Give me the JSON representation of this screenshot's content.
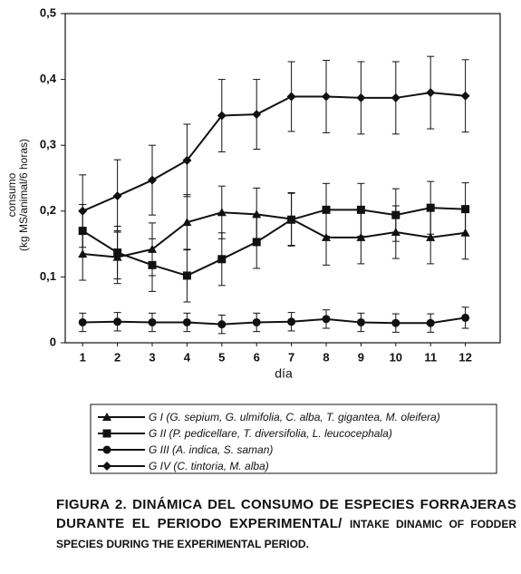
{
  "chart_data": {
    "type": "line",
    "xlabel": "día",
    "ylabel": [
      "consumo",
      "(kg MS/animal/6 horas)"
    ],
    "x": [
      1,
      2,
      3,
      4,
      5,
      6,
      7,
      8,
      9,
      10,
      11,
      12
    ],
    "xlim": [
      0.5,
      13
    ],
    "xticks": [
      1,
      2,
      3,
      4,
      5,
      6,
      7,
      8,
      9,
      10,
      11,
      12
    ],
    "ylim": [
      0,
      0.5
    ],
    "yticks": [
      0,
      {
        "value": 0.1,
        "label": "0,1"
      },
      {
        "value": 0.2,
        "label": "0,2"
      },
      {
        "value": 0.3,
        "label": "0,3"
      },
      {
        "value": 0.4,
        "label": "0,4"
      },
      {
        "value": 0.5,
        "label": "0,5"
      }
    ],
    "series": [
      {
        "name": "G I (G. sepium, G. ulmifolia, C. alba, T. gigantea, M. oleifera)",
        "color": "#111111",
        "marker": "triangle",
        "values": [
          0.135,
          0.13,
          0.142,
          0.183,
          0.198,
          0.195,
          0.188,
          0.16,
          0.16,
          0.168,
          0.16,
          0.167
        ],
        "errors": [
          0.04,
          0.04,
          0.04,
          0.042,
          0.04,
          0.04,
          0.04,
          0.042,
          0.04,
          0.04,
          0.04,
          0.04
        ]
      },
      {
        "name": "G II (P. pedicellare, T. diversifolia, L. leucocephala)",
        "color": "#111111",
        "marker": "square",
        "values": [
          0.17,
          0.137,
          0.118,
          0.102,
          0.127,
          0.153,
          0.187,
          0.202,
          0.202,
          0.194,
          0.205,
          0.203
        ],
        "errors": [
          0.04,
          0.04,
          0.04,
          0.04,
          0.04,
          0.04,
          0.04,
          0.04,
          0.04,
          0.04,
          0.04,
          0.04
        ]
      },
      {
        "name": "G III (A. indica, S. saman)",
        "color": "#111111",
        "marker": "circle",
        "values": [
          0.031,
          0.032,
          0.031,
          0.031,
          0.028,
          0.031,
          0.032,
          0.036,
          0.031,
          0.03,
          0.03,
          0.038
        ],
        "errors": [
          0.014,
          0.014,
          0.014,
          0.014,
          0.014,
          0.014,
          0.014,
          0.014,
          0.014,
          0.014,
          0.014,
          0.016
        ]
      },
      {
        "name": "G IV (C. tintoria, M. alba)",
        "color": "#111111",
        "marker": "diamond",
        "values": [
          0.2,
          0.223,
          0.247,
          0.277,
          0.345,
          0.347,
          0.374,
          0.374,
          0.372,
          0.372,
          0.38,
          0.375
        ],
        "errors": [
          0.055,
          0.055,
          0.053,
          0.055,
          0.055,
          0.053,
          0.053,
          0.055,
          0.055,
          0.055,
          0.055,
          0.055
        ]
      }
    ],
    "caption": {
      "spanish": "FIGURA 2. DINÁMICA DEL CONSUMO DE ESPECIES FORRAJERAS DURANTE EL PERIODO EXPERIMENTAL/",
      "english": "INTAKE DINAMIC OF FODDER SPECIES DURING THE EXPERIMENTAL PERIOD."
    }
  }
}
